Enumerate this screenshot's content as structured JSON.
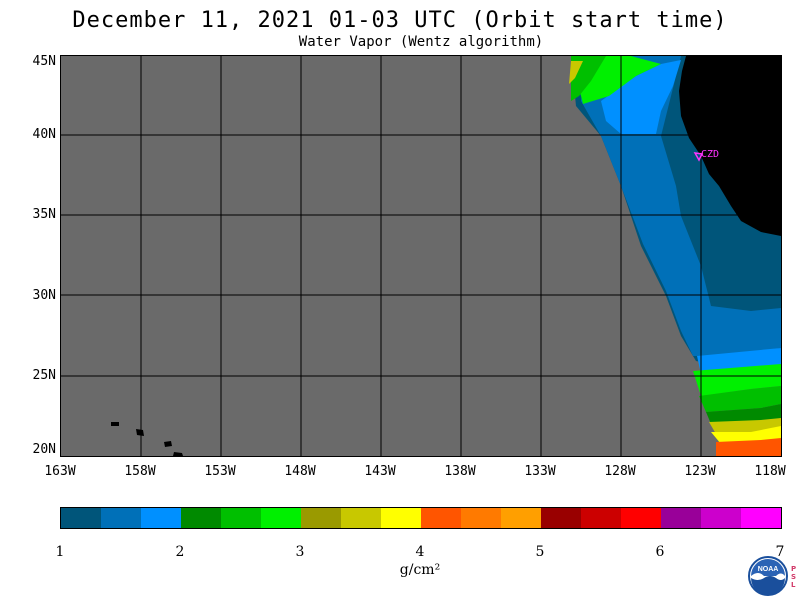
{
  "title": "December 11, 2021  01-03 UTC  (Orbit start time)",
  "subtitle": "Water Vapor (Wentz algorithm)",
  "map": {
    "lat_labels": [
      "45N",
      "40N",
      "35N",
      "30N",
      "25N",
      "20N"
    ],
    "lon_labels": [
      "163W",
      "158W",
      "153W",
      "148W",
      "143W",
      "138W",
      "133W",
      "128W",
      "123W",
      "118W"
    ],
    "station_label": "CZD",
    "colors": {
      "no_data": "#6a6a6a",
      "land": "#000000",
      "station": "#ff33ff"
    }
  },
  "colorbar": {
    "tick_labels": [
      "1",
      "2",
      "3",
      "4",
      "5",
      "6",
      "7"
    ],
    "units": "g/cm²",
    "colors": [
      "#00557a",
      "#0070b8",
      "#0090ff",
      "#008a00",
      "#00bf00",
      "#00f000",
      "#9a9a00",
      "#c8c800",
      "#ffff00",
      "#ff5500",
      "#ff7a00",
      "#ff9f00",
      "#990000",
      "#cc0000",
      "#ff0000",
      "#990099",
      "#cc00cc",
      "#ff00ff"
    ]
  },
  "logo": {
    "text": "NOAA",
    "side_text": [
      "P",
      "S",
      "L"
    ]
  }
}
